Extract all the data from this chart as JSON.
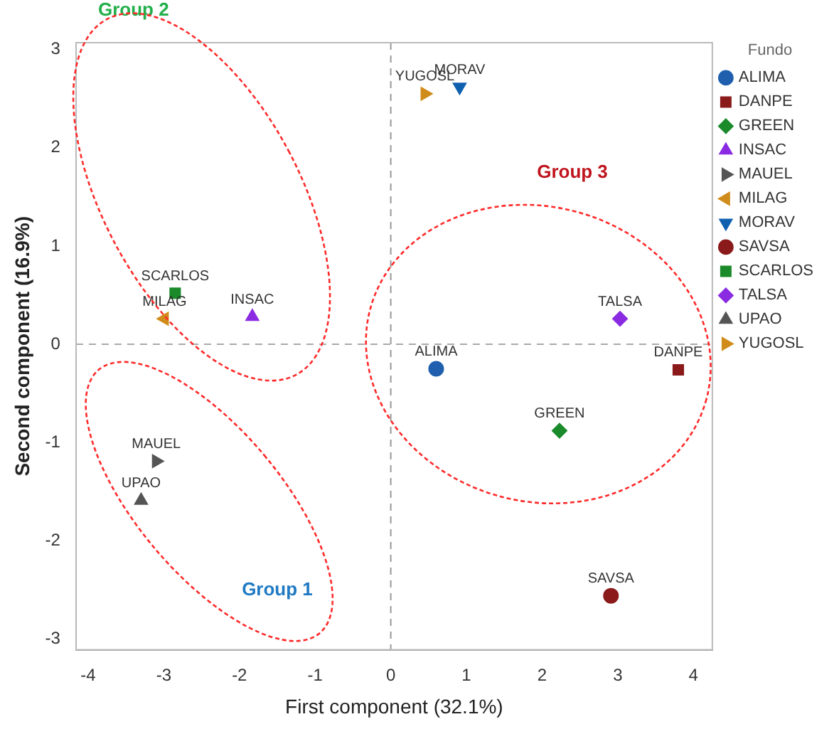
{
  "chart_data": {
    "type": "scatter",
    "xlabel": "First component (32.1%)",
    "ylabel": "Second component (16.9%)",
    "legend_title": "Fundo",
    "legend": "right",
    "grid": false,
    "xlim": [
      -4.16,
      4.25
    ],
    "ylim": [
      -3.11,
      3.07
    ],
    "xticks": [
      -4,
      -3,
      -2,
      -1,
      0,
      1,
      2,
      3,
      4
    ],
    "yticks": [
      -3,
      -2,
      -1,
      0,
      1,
      2,
      3
    ],
    "ref_lines": [
      {
        "axis": "x",
        "value": 0,
        "color": "#999999",
        "line_style": "dashed"
      },
      {
        "axis": "y",
        "value": 0,
        "color": "#aaaaaa",
        "line_style": "dashed"
      }
    ],
    "annotations": [
      "Group 2",
      "Group 3",
      "Group 1"
    ],
    "series": [
      {
        "name": "ALIMA",
        "color": "#1f5fae",
        "marker": "circle",
        "x": [
          0.6
        ],
        "values": [
          -0.25
        ]
      },
      {
        "name": "DANPE",
        "color": "#8b1a1a",
        "marker": "square",
        "x": [
          3.8
        ],
        "values": [
          -0.26
        ]
      },
      {
        "name": "GREEN",
        "color": "#1a8a2a",
        "marker": "diamond",
        "x": [
          2.23
        ],
        "values": [
          -0.88
        ]
      },
      {
        "name": "INSAC",
        "color": "#8a2be2",
        "marker": "triangle",
        "x": [
          -1.83
        ],
        "values": [
          0.28
        ]
      },
      {
        "name": "MAUEL",
        "color": "#555555",
        "marker": "triangle-right",
        "x": [
          -3.1
        ],
        "values": [
          -1.19
        ]
      },
      {
        "name": "MILAG",
        "color": "#d08c1a",
        "marker": "triangle-left",
        "x": [
          -2.99
        ],
        "values": [
          0.26
        ]
      },
      {
        "name": "MORAV",
        "color": "#1060b0",
        "marker": "triangle-down",
        "x": [
          0.91
        ],
        "values": [
          2.62
        ]
      },
      {
        "name": "SAVSA",
        "color": "#8b1a1a",
        "marker": "circle",
        "x": [
          2.91
        ],
        "values": [
          -2.56
        ]
      },
      {
        "name": "SCARLOS",
        "color": "#1a8a2a",
        "marker": "square",
        "x": [
          -2.85
        ],
        "values": [
          0.52
        ]
      },
      {
        "name": "TALSA",
        "color": "#8a2be2",
        "marker": "diamond",
        "x": [
          3.03
        ],
        "values": [
          0.26
        ]
      },
      {
        "name": "UPAO",
        "color": "#555555",
        "marker": "triangle",
        "x": [
          -3.3
        ],
        "values": [
          -1.59
        ]
      },
      {
        "name": "YUGOSL",
        "color": "#d08c1a",
        "marker": "triangle-right",
        "x": [
          0.45
        ],
        "values": [
          2.55
        ]
      }
    ]
  }
}
